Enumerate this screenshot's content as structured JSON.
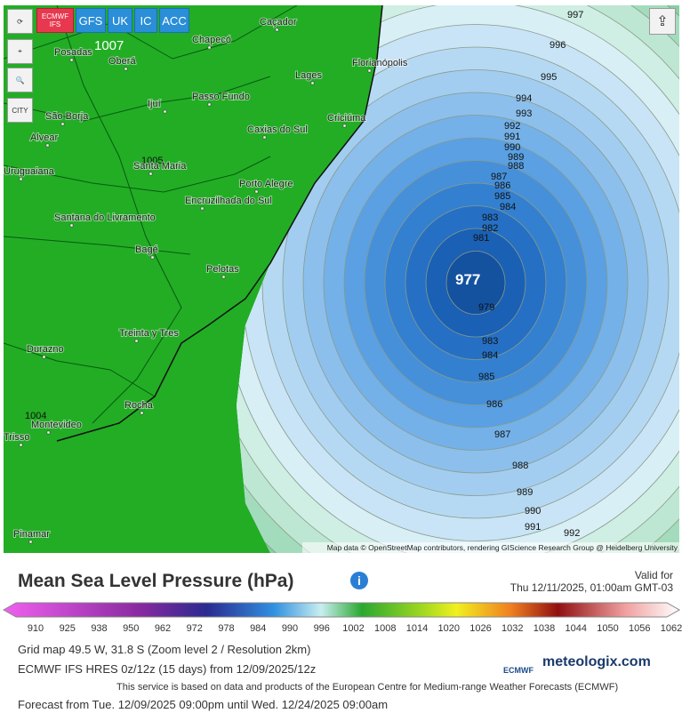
{
  "model_buttons": [
    "ECMWF\nIFS",
    "GFS",
    "UK",
    "IC",
    "ACC"
  ],
  "side_buttons": [
    "CITY"
  ],
  "cities": [
    "Caçador",
    "Chapecó",
    "Posadas",
    "Oberá",
    "Lages",
    "Florianópolis",
    "Ijuí",
    "Passo Fundo",
    "São Borja",
    "Caxias do Sul",
    "Criciúma",
    "Alvear",
    "Santa Maria",
    "Uruguaiana",
    "Porto Alegre",
    "Encruzilhada do Sul",
    "Santana do Livramento",
    "Bagé",
    "Pelotas",
    "Treinta y Tres",
    "Durazno",
    "Rocha",
    "Montevideo",
    "Trisso",
    "Pinamar"
  ],
  "isobars": [
    997,
    996,
    995,
    994,
    993,
    992,
    991,
    990,
    989,
    988,
    987,
    986,
    985,
    984,
    983,
    982,
    981,
    977,
    979,
    983,
    984,
    985,
    986,
    987,
    988,
    989,
    990,
    991,
    992
  ],
  "land_isobars": [
    1007,
    1005,
    1004
  ],
  "attribution": "Map data © OpenStreetMap contributors, rendering GIScience Research Group @ Heidelberg University",
  "title": "Mean Sea Level Pressure (hPa)",
  "valid": {
    "label": "Valid for",
    "time": "Thu 12/11/2025, 01:00am GMT-03"
  },
  "scale_labels": [
    910,
    925,
    938,
    950,
    962,
    972,
    978,
    984,
    990,
    996,
    1002,
    1008,
    1014,
    1020,
    1026,
    1032,
    1038,
    1044,
    1050,
    1056,
    1062
  ],
  "footer": [
    "Grid map 49.5 W, 31.8 S (Zoom level 2 / Resolution 2km)",
    "ECMWF IFS HRES 0z/12z (15 days) from 12/09/2025/12z",
    "This service is based on data and products of the European Centre for Medium-range Weather Forecasts (ECMWF)",
    "Forecast from Tue. 12/09/2025 09:00pm until Wed. 12/24/2025 09:00am"
  ],
  "logos": [
    "ECMWF",
    "meteologix.com"
  ]
}
